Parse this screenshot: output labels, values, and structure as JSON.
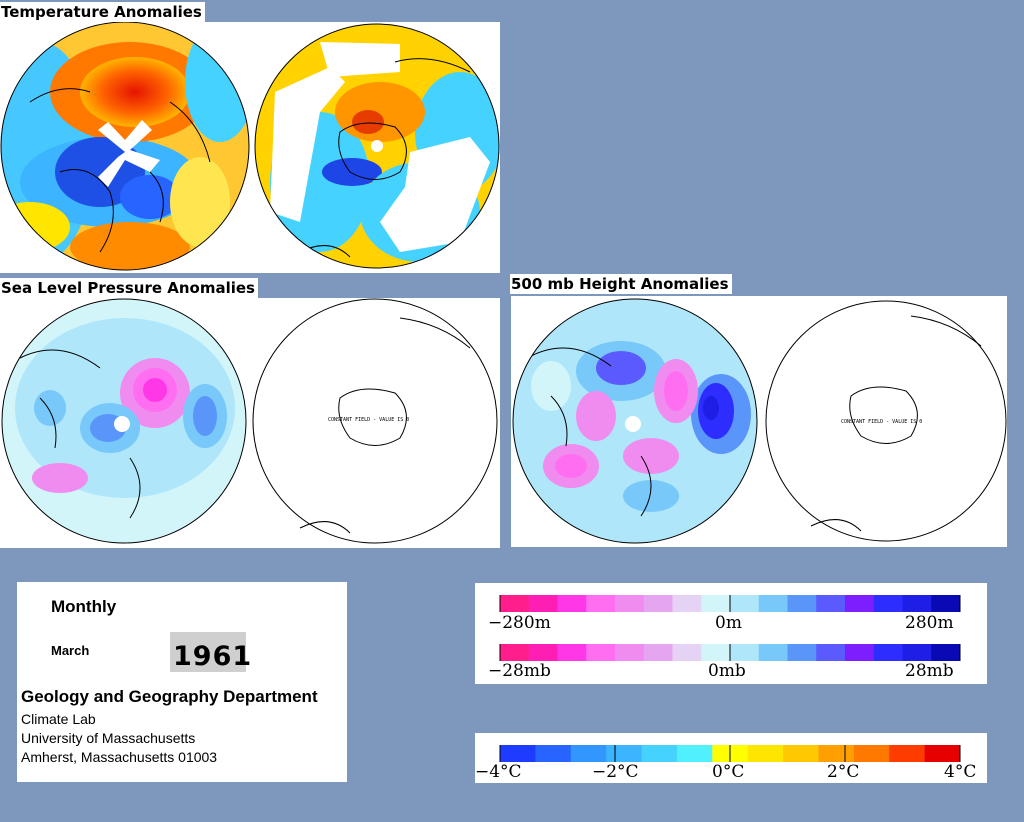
{
  "sections": {
    "temperature": {
      "title": "Temperature Anomalies"
    },
    "slp": {
      "title": "Sea Level Pressure Anomalies",
      "constant_field_note": "CONSTANT FIELD - VALUE IS 0"
    },
    "height500": {
      "title": "500 mb Height Anomalies",
      "constant_field_note": "CONSTANT FIELD - VALUE IS 0"
    }
  },
  "info": {
    "period": "Monthly",
    "month": "March",
    "year": "1961",
    "department": "Geology and Geography Department",
    "lab": "Climate Lab",
    "university": "University of Massachusetts",
    "address": "Amherst, Massachusetts 01003"
  },
  "legends": {
    "height": {
      "min": "−280m",
      "mid": "0m",
      "max": "280m"
    },
    "pressure": {
      "min": "−28mb",
      "mid": "0mb",
      "max": "28mb"
    },
    "temperature": {
      "t1": "−4°C",
      "t2": "−2°C",
      "t3": "0°C",
      "t4": "2°C",
      "t5": "4°C"
    }
  },
  "colors": {
    "background": "#7d97bd",
    "anomaly_scale": [
      "#ff1e8c",
      "#ff1eb4",
      "#ff37e6",
      "#ff6ef0",
      "#f08cf0",
      "#e6a5f0",
      "#e6d2f5",
      "#d2f5fa",
      "#afe6fa",
      "#78c8fa",
      "#5a96fa",
      "#5a5aff",
      "#7d1eff",
      "#2d2dff",
      "#1e1ee6",
      "#0a0ab4"
    ],
    "temperature_scale": [
      "#1e3cff",
      "#2864ff",
      "#3296ff",
      "#3cb4ff",
      "#46d2ff",
      "#50f0ff",
      "#ffff00",
      "#ffe600",
      "#ffc800",
      "#ffa000",
      "#ff7800",
      "#ff3c00",
      "#e60000"
    ]
  }
}
